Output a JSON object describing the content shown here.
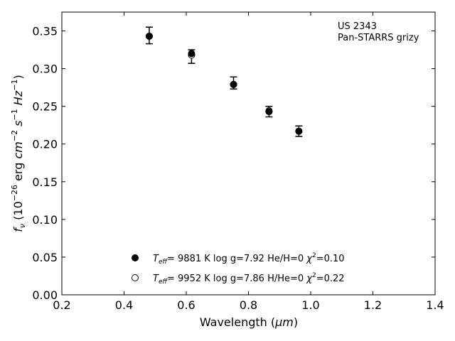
{
  "chart_data": {
    "type": "scatter",
    "xlabel_text": "Wavelength (",
    "xlabel_unit": "μm",
    "xlabel_close": ")",
    "ylabel": {
      "f": "f",
      "nu": "ν",
      "open": " (10",
      "exp1": "−26",
      "erg": " erg ",
      "cm": "cm",
      "exp2": "−2",
      "s": " s",
      "exp3": "−1",
      "hz": " Hz",
      "exp4": "−1",
      "close": ")"
    },
    "xlim": [
      0.2,
      1.4
    ],
    "ylim": [
      0.0,
      0.375
    ],
    "xticks": [
      0.2,
      0.4,
      0.6,
      0.8,
      1.0,
      1.2,
      1.4
    ],
    "xtick_labels": [
      "0.2",
      "0.4",
      "0.6",
      "0.8",
      "1.0",
      "1.2",
      "1.4"
    ],
    "yticks": [
      0.0,
      0.05,
      0.1,
      0.15,
      0.2,
      0.25,
      0.3,
      0.35
    ],
    "ytick_labels": [
      "0.00",
      "0.05",
      "0.10",
      "0.15",
      "0.20",
      "0.25",
      "0.30",
      "0.35"
    ],
    "annotation": [
      "US 2343",
      "Pan-STARRS grizy"
    ],
    "observed": {
      "x": [
        0.481,
        0.617,
        0.752,
        0.866,
        0.962
      ],
      "y": [
        0.344,
        0.316,
        0.281,
        0.243,
        0.217
      ],
      "yerr": [
        0.011,
        0.009,
        0.008,
        0.007,
        0.007
      ]
    },
    "series": [
      {
        "marker": "filled",
        "y": [
          0.343,
          0.32,
          0.279,
          0.243,
          0.217
        ],
        "teff_T": "T",
        "teff_sub": "eff",
        "label": "=  9881 K  log g=7.92  He/H=0  ",
        "chi_sym": "χ",
        "chi_exp": "2",
        "chi_val": "=0.10"
      },
      {
        "marker": "open",
        "y": [
          0.343,
          0.318,
          0.279,
          0.244,
          0.217
        ],
        "teff_T": "T",
        "teff_sub": "eff",
        "label": "=  9952 K  log g=7.86  H/He=0  ",
        "chi_sym": "χ",
        "chi_exp": "2",
        "chi_val": "=0.22"
      }
    ]
  }
}
